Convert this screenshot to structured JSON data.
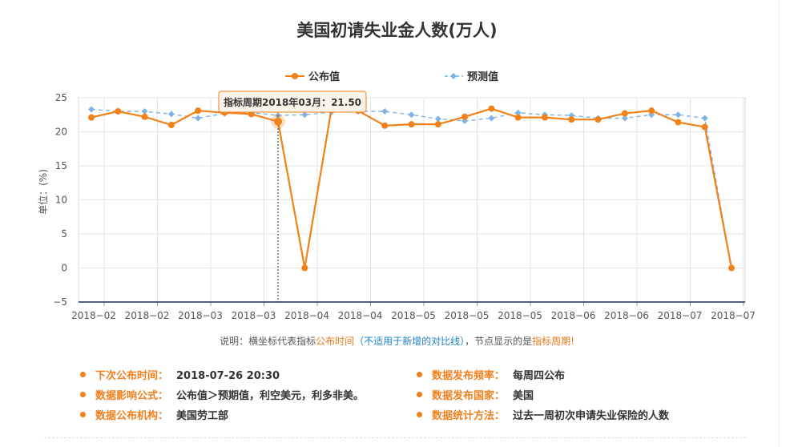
{
  "chart_data": {
    "type": "line",
    "title": "美国初请失业金人数(万人)",
    "ylabel": "单位：(%)",
    "ylim": [
      -5,
      25
    ],
    "yticks": [
      "25",
      "20",
      "15",
      "10",
      "5",
      "0",
      "−5"
    ],
    "xtick_labels": [
      "2018−02",
      "2018−02",
      "2018−03",
      "2018−03",
      "2018−04",
      "2018−04",
      "2018−05",
      "2018−05",
      "2018−05",
      "2018−06",
      "2018−06",
      "2018−07",
      "2018−07"
    ],
    "legend_position": "top-center",
    "grid": true,
    "series": [
      {
        "name": "公布值",
        "color": "#f28118",
        "style": "solid",
        "values": [
          22.1,
          23.0,
          22.2,
          21.0,
          23.1,
          22.8,
          22.6,
          21.5,
          0,
          23.3,
          23.1,
          20.9,
          21.1,
          21.1,
          22.2,
          23.4,
          22.1,
          22.1,
          21.8,
          21.8,
          22.7,
          23.1,
          21.4,
          20.7,
          0
        ]
      },
      {
        "name": "预测值",
        "color": "#7fb2e5",
        "style": "dashed",
        "values": [
          23.3,
          23.0,
          23.0,
          22.6,
          22.0,
          22.7,
          22.8,
          22.4,
          22.5,
          22.9,
          23.0,
          23.0,
          22.5,
          21.9,
          21.6,
          22.0,
          22.8,
          22.5,
          22.4,
          22.0,
          22.0,
          22.5,
          22.5,
          22.0,
          0
        ]
      }
    ],
    "tooltip": {
      "text": "指标周期2018年03月：21.50",
      "point_index": 7
    }
  },
  "note": {
    "prefix": "说明：横坐标代表指标",
    "publish_time": "公布时间",
    "paren": "（不适用于新增的对比线）",
    "middle": "，节点显示的是",
    "period": "指标周期!"
  },
  "info": [
    {
      "label": "下次公布时间：",
      "value": "2018-07-26 20:30"
    },
    {
      "label": "数据发布频率：",
      "value": "每周四公布"
    },
    {
      "label": "数据影响公式：",
      "value": "公布值＞预期值，利空美元，利多非美。"
    },
    {
      "label": "数据发布国家：",
      "value": "美国"
    },
    {
      "label": "数据公布机构：",
      "value": "美国劳工部"
    },
    {
      "label": "数据统计方法：",
      "value": "过去一周初次申请失业保险的人数"
    }
  ]
}
